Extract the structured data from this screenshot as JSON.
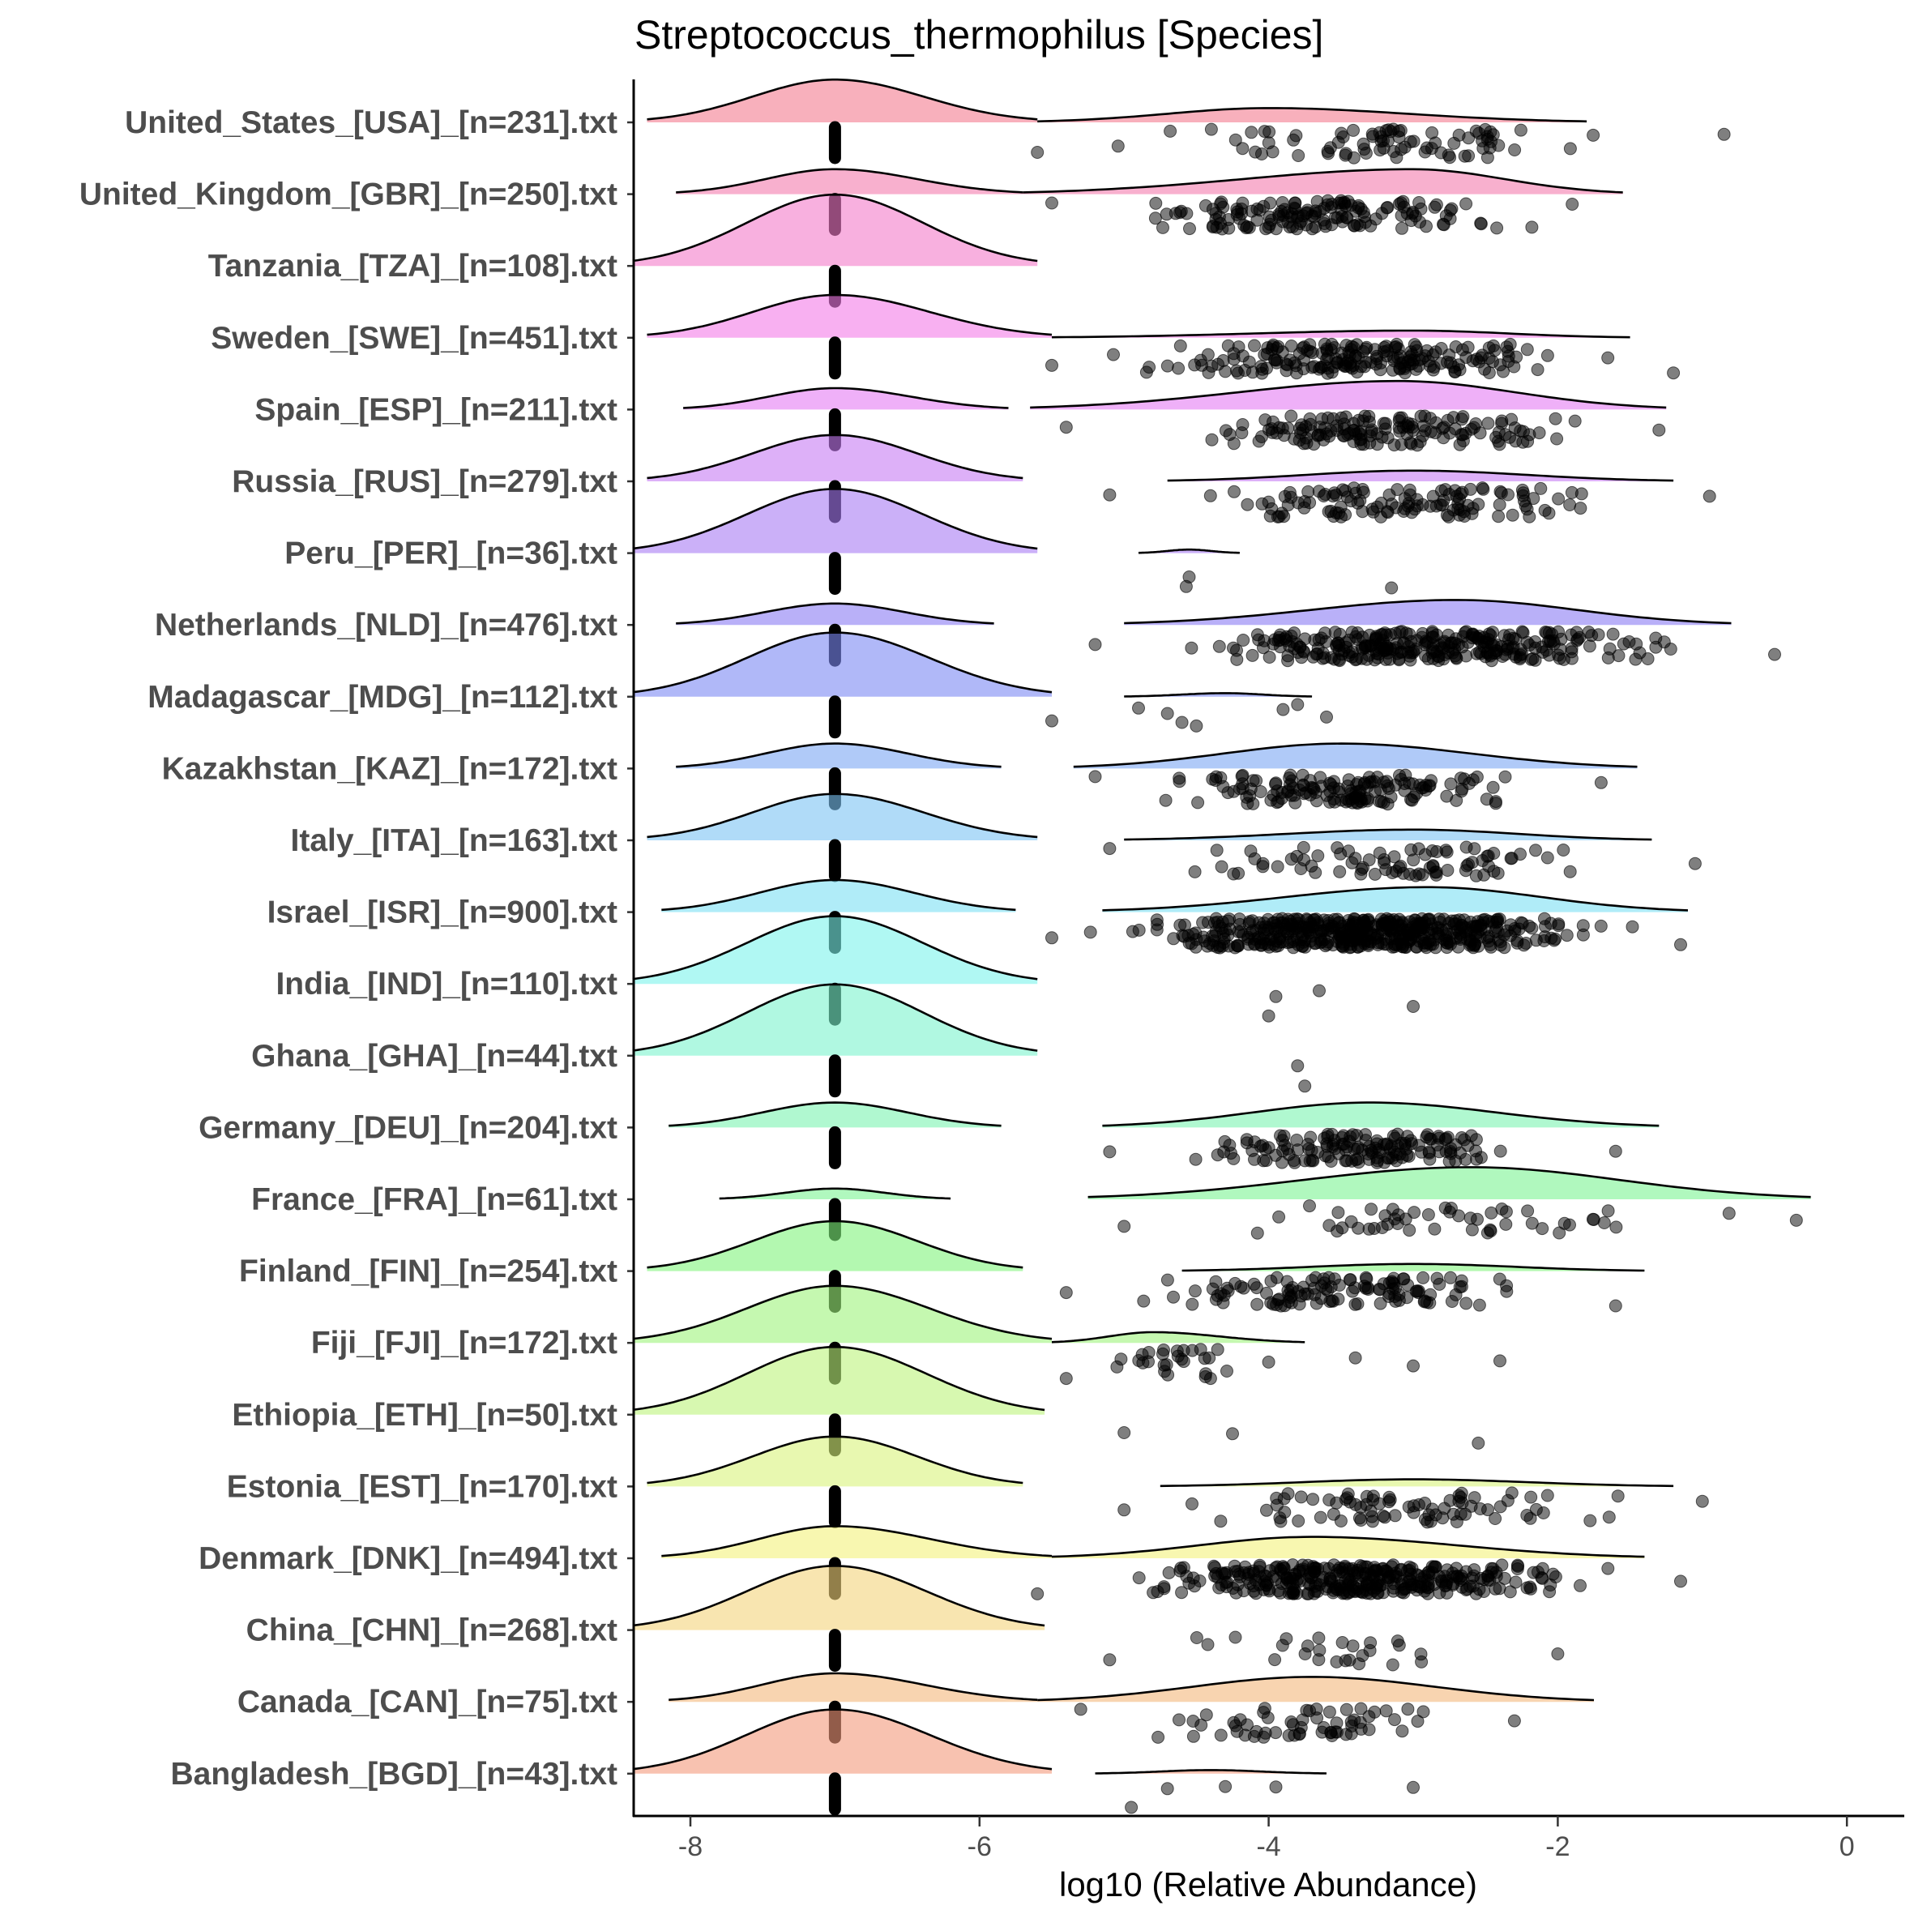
{
  "chart_data": {
    "type": "ridgeline",
    "title": "Streptococcus_thermophilus [Species]",
    "xlabel": "log10 (Relative Abundance)",
    "ylabel": "",
    "xlim": [
      -8.4,
      0.4
    ],
    "xticks": [
      -8,
      -6,
      -4,
      -2,
      0
    ],
    "xtick_labels": [
      "-8",
      "-6",
      "-4",
      "-2",
      "0"
    ],
    "zero_value_position": -7,
    "rows": [
      {
        "label": "United_States_[USA]_[n=231].txt",
        "zero": {
          "lo": -8.3,
          "hi": -5.6,
          "h": 0.6
        },
        "nz": {
          "lo": -5.6,
          "hi": -1.8,
          "mode": -4,
          "h": 0.2
        },
        "points": {
          "lo": -5.6,
          "hi": -0.85,
          "count": 80
        }
      },
      {
        "label": "United_Kingdom_[GBR]_[n=250].txt",
        "zero": {
          "lo": -8.1,
          "hi": -5.7,
          "h": 0.35
        },
        "nz": {
          "lo": -5.7,
          "hi": -1.55,
          "mode": -3,
          "h": 0.35
        },
        "points": {
          "lo": -5.5,
          "hi": -1.9,
          "count": 150
        }
      },
      {
        "label": "Tanzania_[TZA]_[n=108].txt",
        "zero": {
          "lo": -8.4,
          "hi": -5.6,
          "h": 1.0
        },
        "nz": null,
        "points": null
      },
      {
        "label": "Sweden_[SWE]_[n=451].txt",
        "zero": {
          "lo": -8.3,
          "hi": -5.5,
          "h": 0.6
        },
        "nz": {
          "lo": -5.5,
          "hi": -1.5,
          "mode": -3,
          "h": 0.1
        },
        "points": {
          "lo": -5.5,
          "hi": -1.2,
          "count": 200
        }
      },
      {
        "label": "Spain_[ESP]_[n=211].txt",
        "zero": {
          "lo": -8.05,
          "hi": -5.8,
          "h": 0.3
        },
        "nz": {
          "lo": -5.65,
          "hi": -1.25,
          "mode": -3.1,
          "h": 0.4
        },
        "points": {
          "lo": -5.4,
          "hi": -1.3,
          "count": 150
        }
      },
      {
        "label": "Russia_[RUS]_[n=279].txt",
        "zero": {
          "lo": -8.3,
          "hi": -5.7,
          "h": 0.65
        },
        "nz": {
          "lo": -4.7,
          "hi": -1.2,
          "mode": -3,
          "h": 0.15
        },
        "points": {
          "lo": -5.1,
          "hi": -0.95,
          "count": 120
        }
      },
      {
        "label": "Peru_[PER]_[n=36].txt",
        "zero": {
          "lo": -8.4,
          "hi": -5.6,
          "h": 0.9
        },
        "nz": {
          "lo": -4.9,
          "hi": -4.2,
          "mode": -4.55,
          "h": 0.05
        },
        "points": {
          "values": [
            -4.57,
            -4.55,
            -3.15
          ]
        }
      },
      {
        "label": "Netherlands_[NLD]_[n=476].txt",
        "zero": {
          "lo": -8.1,
          "hi": -5.9,
          "h": 0.3
        },
        "nz": {
          "lo": -5,
          "hi": -0.8,
          "mode": -2.7,
          "h": 0.35
        },
        "points": {
          "lo": -5.2,
          "hi": -0.5,
          "count": 300
        }
      },
      {
        "label": "Madagascar_[MDG]_[n=112].txt",
        "zero": {
          "lo": -8.4,
          "hi": -5.5,
          "h": 0.9
        },
        "nz": {
          "lo": -5,
          "hi": -3.7,
          "mode": -4.3,
          "h": 0.05
        },
        "points": {
          "values": [
            -5.5,
            -4.9,
            -4.7,
            -4.6,
            -4.5,
            -3.9,
            -3.8,
            -3.6
          ]
        }
      },
      {
        "label": "Kazakhstan_[KAZ]_[n=172].txt",
        "zero": {
          "lo": -8.1,
          "hi": -5.85,
          "h": 0.35
        },
        "nz": {
          "lo": -5.35,
          "hi": -1.45,
          "mode": -3.5,
          "h": 0.35
        },
        "points": {
          "lo": -5.2,
          "hi": -1.7,
          "count": 150
        }
      },
      {
        "label": "Italy_[ITA]_[n=163].txt",
        "zero": {
          "lo": -8.3,
          "hi": -5.6,
          "h": 0.65
        },
        "nz": {
          "lo": -5,
          "hi": -1.35,
          "mode": -3,
          "h": 0.15
        },
        "points": {
          "lo": -5.1,
          "hi": -1.05,
          "count": 80
        }
      },
      {
        "label": "Israel_[ISR]_[n=900].txt",
        "zero": {
          "lo": -8.2,
          "hi": -5.75,
          "h": 0.45
        },
        "nz": {
          "lo": -5.15,
          "hi": -1.1,
          "mode": -2.9,
          "h": 0.35
        },
        "points": {
          "lo": -5.5,
          "hi": -1.15,
          "count": 500
        }
      },
      {
        "label": "India_[IND]_[n=110].txt",
        "zero": {
          "lo": -8.4,
          "hi": -5.6,
          "h": 0.95
        },
        "nz": null,
        "points": {
          "values": [
            -4,
            -3.95,
            -3.65,
            -3
          ]
        }
      },
      {
        "label": "Ghana_[GHA]_[n=44].txt",
        "zero": {
          "lo": -8.4,
          "hi": -5.6,
          "h": 1.0
        },
        "nz": null,
        "points": {
          "values": [
            -3.75,
            -3.8
          ]
        }
      },
      {
        "label": "Germany_[DEU]_[n=204].txt",
        "zero": {
          "lo": -8.15,
          "hi": -5.85,
          "h": 0.35
        },
        "nz": {
          "lo": -5.15,
          "hi": -1.3,
          "mode": -3.3,
          "h": 0.35
        },
        "points": {
          "lo": -5.1,
          "hi": -1.6,
          "count": 150
        }
      },
      {
        "label": "France_[FRA]_[n=61].txt",
        "zero": {
          "lo": -7.8,
          "hi": -6.2,
          "h": 0.15
        },
        "nz": {
          "lo": -5.25,
          "hi": -0.25,
          "mode": -2.6,
          "h": 0.45
        },
        "points": {
          "lo": -5,
          "hi": -0.35,
          "count": 50
        }
      },
      {
        "label": "Finland_[FIN]_[n=254].txt",
        "zero": {
          "lo": -8.3,
          "hi": -5.7,
          "h": 0.7
        },
        "nz": {
          "lo": -4.6,
          "hi": -1.4,
          "mode": -3,
          "h": 0.1
        },
        "points": {
          "lo": -5.4,
          "hi": -1.6,
          "count": 120
        }
      },
      {
        "label": "Fiji_[FJI]_[n=172].txt",
        "zero": {
          "lo": -8.4,
          "hi": -5.5,
          "h": 0.8
        },
        "nz": {
          "lo": -5.5,
          "hi": -3.75,
          "mode": -4.8,
          "h": 0.15
        },
        "points": {
          "lo": -5.4,
          "hi": -4.0,
          "count": 27,
          "extra": [
            -3.4,
            -3,
            -2.4
          ]
        }
      },
      {
        "label": "Ethiopia_[ETH]_[n=50].txt",
        "zero": {
          "lo": -8.4,
          "hi": -5.55,
          "h": 0.95
        },
        "nz": null,
        "points": {
          "values": [
            -5,
            -4.25,
            -2.55
          ]
        }
      },
      {
        "label": "Estonia_[EST]_[n=170].txt",
        "zero": {
          "lo": -8.3,
          "hi": -5.7,
          "h": 0.7
        },
        "nz": {
          "lo": -4.75,
          "hi": -1.2,
          "mode": -3,
          "h": 0.1
        },
        "points": {
          "lo": -5,
          "hi": -1,
          "count": 80
        }
      },
      {
        "label": "Denmark_[DNK]_[n=494].txt",
        "zero": {
          "lo": -8.2,
          "hi": -5.5,
          "h": 0.45
        },
        "nz": {
          "lo": -5.5,
          "hi": -1.4,
          "mode": -3.7,
          "h": 0.3
        },
        "points": {
          "lo": -5.6,
          "hi": -1.15,
          "count": 350
        }
      },
      {
        "label": "China_[CHN]_[n=268].txt",
        "zero": {
          "lo": -8.4,
          "hi": -5.55,
          "h": 0.9
        },
        "nz": null,
        "points": {
          "lo": -5.1,
          "hi": -2,
          "count": 25
        }
      },
      {
        "label": "Canada_[CAN]_[n=75].txt",
        "zero": {
          "lo": -8.15,
          "hi": -5.6,
          "h": 0.4
        },
        "nz": {
          "lo": -5.6,
          "hi": -1.75,
          "mode": -3.7,
          "h": 0.35
        },
        "points": {
          "lo": -5.3,
          "hi": -2.3,
          "count": 60
        }
      },
      {
        "label": "Bangladesh_[BGD]_[n=43].txt",
        "zero": {
          "lo": -8.4,
          "hi": -5.5,
          "h": 0.9
        },
        "nz": {
          "lo": -5.2,
          "hi": -3.6,
          "mode": -4.4,
          "h": 0.05
        },
        "points": {
          "values": [
            -4.95,
            -4.7,
            -4.3,
            -3.95,
            -3
          ]
        }
      }
    ]
  }
}
